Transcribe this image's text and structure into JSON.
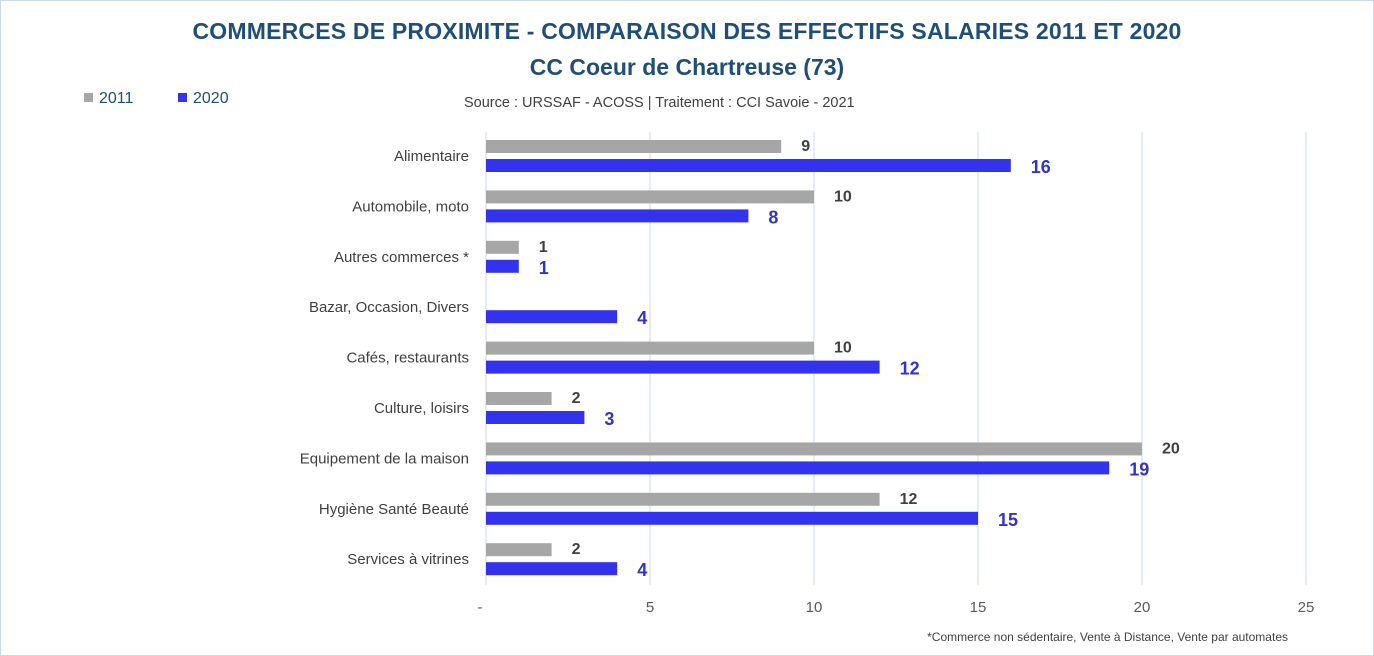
{
  "chart_data": {
    "type": "bar",
    "orientation": "horizontal",
    "title": "COMMERCES DE PROXIMITE - COMPARAISON DES EFFECTIFS SALARIES 2011 ET 2020",
    "subtitle": "CC Coeur de Chartreuse (73)",
    "source": "Source  : URSSAF - ACOSS  |  Traitement : CCI Savoie - 2021",
    "footnote": "*Commerce non sédentaire, Vente à Distance, Vente par automates",
    "categories": [
      "Alimentaire",
      "Automobile, moto",
      "Autres commerces *",
      "Bazar, Occasion, Divers",
      "Cafés, restaurants",
      "Culture, loisirs",
      "Equipement de la maison",
      "Hygiène Santé Beauté",
      "Services à vitrines"
    ],
    "series": [
      {
        "name": "2011",
        "color": "#a6a6a6",
        "label_color": "#404040",
        "values": [
          9,
          10,
          1,
          null,
          10,
          2,
          20,
          12,
          2
        ]
      },
      {
        "name": "2020",
        "color": "#3333ee",
        "label_color": "#3333cc",
        "values": [
          16,
          8,
          1,
          4,
          12,
          3,
          19,
          15,
          4
        ]
      }
    ],
    "xlim": [
      0,
      25
    ],
    "xticks": [
      0,
      5,
      10,
      15,
      20,
      25
    ],
    "xtick_labels": [
      "-",
      "5",
      "10",
      "15",
      "20",
      "25"
    ],
    "grid": true,
    "legend_position": "top-left"
  }
}
